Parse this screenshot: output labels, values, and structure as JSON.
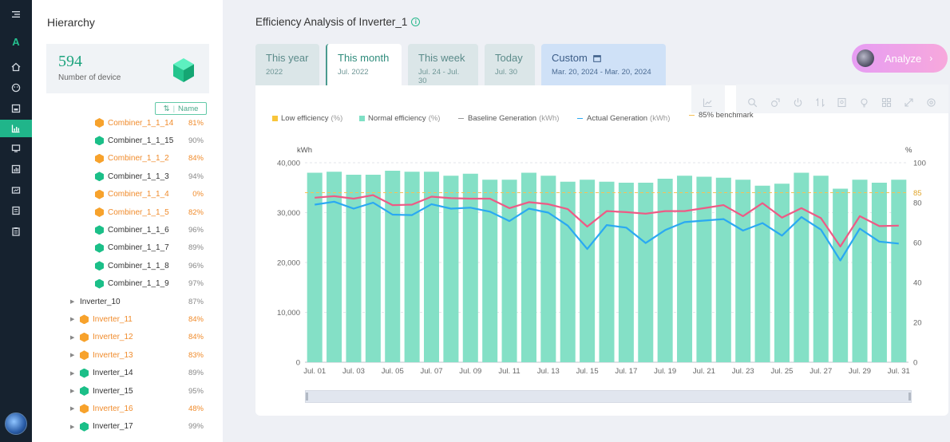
{
  "sidebar": {
    "title": "Hierarchy",
    "device_count": "594",
    "device_label": "Number of device",
    "sort_label": "Name",
    "items": [
      {
        "label": "Combiner_1_1_14",
        "pct": "81%",
        "color": "#f7a22c",
        "expandable": false,
        "level": 2,
        "warn": true
      },
      {
        "label": "Combiner_1_1_15",
        "pct": "90%",
        "color": "#1bbf88",
        "expandable": false,
        "level": 2,
        "warn": false
      },
      {
        "label": "Combiner_1_1_2",
        "pct": "84%",
        "color": "#f7a22c",
        "expandable": false,
        "level": 2,
        "warn": true
      },
      {
        "label": "Combiner_1_1_3",
        "pct": "94%",
        "color": "#1bbf88",
        "expandable": false,
        "level": 2,
        "warn": false
      },
      {
        "label": "Combiner_1_1_4",
        "pct": "0%",
        "color": "#f7a22c",
        "expandable": false,
        "level": 2,
        "warn": true
      },
      {
        "label": "Combiner_1_1_5",
        "pct": "82%",
        "color": "#f7a22c",
        "expandable": false,
        "level": 2,
        "warn": true
      },
      {
        "label": "Combiner_1_1_6",
        "pct": "96%",
        "color": "#1bbf88",
        "expandable": false,
        "level": 2,
        "warn": false
      },
      {
        "label": "Combiner_1_1_7",
        "pct": "89%",
        "color": "#1bbf88",
        "expandable": false,
        "level": 2,
        "warn": false
      },
      {
        "label": "Combiner_1_1_8",
        "pct": "96%",
        "color": "#1bbf88",
        "expandable": false,
        "level": 2,
        "warn": false
      },
      {
        "label": "Combiner_1_1_9",
        "pct": "97%",
        "color": "#1bbf88",
        "expandable": false,
        "level": 2,
        "warn": false
      },
      {
        "label": "Inverter_10",
        "pct": "87%",
        "color": "",
        "expandable": true,
        "level": 1,
        "warn": false
      },
      {
        "label": "Inverter_11",
        "pct": "84%",
        "color": "#f7a22c",
        "expandable": true,
        "level": 1,
        "warn": true
      },
      {
        "label": "Inverter_12",
        "pct": "84%",
        "color": "#f7a22c",
        "expandable": true,
        "level": 1,
        "warn": true
      },
      {
        "label": "Inverter_13",
        "pct": "83%",
        "color": "#f7a22c",
        "expandable": true,
        "level": 1,
        "warn": true
      },
      {
        "label": "Inverter_14",
        "pct": "89%",
        "color": "#1bbf88",
        "expandable": true,
        "level": 1,
        "warn": false
      },
      {
        "label": "Inverter_15",
        "pct": "95%",
        "color": "#1bbf88",
        "expandable": true,
        "level": 1,
        "warn": false
      },
      {
        "label": "Inverter_16",
        "pct": "48%",
        "color": "#f7a22c",
        "expandable": true,
        "level": 1,
        "warn": true
      },
      {
        "label": "Inverter_17",
        "pct": "99%",
        "color": "#1bbf88",
        "expandable": true,
        "level": 1,
        "warn": false
      }
    ]
  },
  "page": {
    "title": "Efficiency Analysis of Inverter_1",
    "info_icon": "info-icon",
    "analyze_label": "Analyze"
  },
  "tabs": [
    {
      "label": "This year",
      "sub": "2022"
    },
    {
      "label": "This month",
      "sub": "Jul. 2022"
    },
    {
      "label": "This week",
      "sub": "Jul. 24 - Jul. 30"
    },
    {
      "label": "Today",
      "sub": "Jul. 30"
    },
    {
      "label": "Custom",
      "sub": "Mar. 20, 2024 - Mar. 20, 2024"
    }
  ],
  "legend": [
    {
      "label": "Low efficiency",
      "unit": "(%)",
      "kind": "swatch",
      "color": "#f8c53a"
    },
    {
      "label": "Normal efficiency",
      "unit": "(%)",
      "kind": "swatch",
      "color": "#7fe0c5"
    },
    {
      "label": "Baseline Generation",
      "unit": "(kWh)",
      "kind": "line",
      "color": "#ee5a85"
    },
    {
      "label": "Actual Generation",
      "unit": "(kWh)",
      "kind": "line",
      "color": "#2aa9f2"
    },
    {
      "label": "85% benchmark",
      "unit": "",
      "kind": "line",
      "color": "#f5c155"
    }
  ],
  "chart_data": {
    "type": "bar",
    "ylabel_left": "kWh",
    "ylabel_right": "%",
    "ylim_left": [
      0,
      40000
    ],
    "ylim_right": [
      0,
      100
    ],
    "yticks_left": [
      "0",
      "10,000",
      "20,000",
      "30,000",
      "40,000"
    ],
    "yticks_right": [
      "0",
      "20",
      "40",
      "60",
      "80",
      "85",
      "100"
    ],
    "benchmark": 85,
    "categories": [
      "Jul. 01",
      "Jul. 02",
      "Jul. 03",
      "Jul. 04",
      "Jul. 05",
      "Jul. 06",
      "Jul. 07",
      "Jul. 08",
      "Jul. 09",
      "Jul. 10",
      "Jul. 11",
      "Jul. 12",
      "Jul. 13",
      "Jul. 14",
      "Jul. 15",
      "Jul. 16",
      "Jul. 17",
      "Jul. 18",
      "Jul. 19",
      "Jul. 20",
      "Jul. 21",
      "Jul. 22",
      "Jul. 23",
      "Jul. 24",
      "Jul. 25",
      "Jul. 26",
      "Jul. 27",
      "Jul. 28",
      "Jul. 29",
      "Jul. 30",
      "Jul. 31"
    ],
    "xtick_labels": [
      "Jul. 01",
      "Jul. 03",
      "Jul. 05",
      "Jul. 07",
      "Jul. 09",
      "Jul. 11",
      "Jul. 13",
      "Jul. 15",
      "Jul. 17",
      "Jul. 19",
      "Jul. 21",
      "Jul. 23",
      "Jul. 25",
      "Jul. 27",
      "Jul. 29",
      "Jul. 31"
    ],
    "series": [
      {
        "name": "Normal efficiency",
        "axis": "right",
        "type": "bar",
        "values": [
          95,
          95.5,
          94,
          94,
          96,
          95.5,
          95.5,
          93.5,
          94.5,
          91.5,
          91.5,
          95,
          93.5,
          90.5,
          91.5,
          90.5,
          90,
          90,
          92,
          93.5,
          93,
          92.5,
          91.5,
          88.5,
          89.5,
          95,
          93.5,
          87,
          91.5,
          90,
          91.5
        ]
      },
      {
        "name": "Baseline Generation",
        "axis": "left",
        "type": "line",
        "values": [
          33000,
          33300,
          32800,
          33500,
          31500,
          31600,
          33200,
          32900,
          32800,
          32800,
          30900,
          32100,
          31700,
          30700,
          27200,
          30300,
          30100,
          29800,
          30300,
          30300,
          30900,
          31500,
          29300,
          31900,
          29000,
          30900,
          28900,
          23200,
          29300,
          27300,
          27400
        ]
      },
      {
        "name": "Actual Generation",
        "axis": "left",
        "type": "line",
        "values": [
          31600,
          32200,
          30800,
          32000,
          29600,
          29500,
          31700,
          30800,
          31000,
          30200,
          28300,
          30800,
          30000,
          27400,
          22700,
          27500,
          27000,
          23900,
          26500,
          28100,
          28400,
          28700,
          26400,
          27900,
          25400,
          29100,
          26600,
          20400,
          26800,
          24200,
          23800
        ]
      }
    ]
  }
}
